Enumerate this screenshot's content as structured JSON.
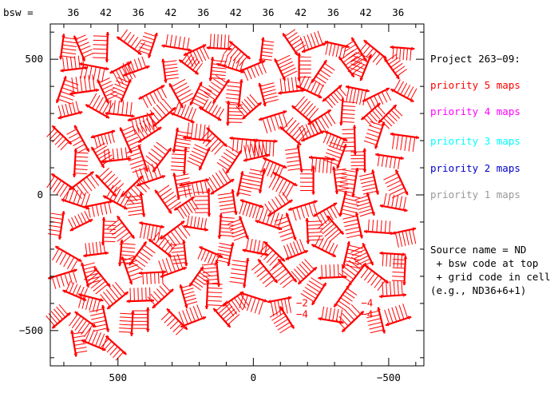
{
  "chart_data": {
    "type": "scatter",
    "xlim": [
      750,
      -630
    ],
    "ylim": [
      -630,
      630
    ],
    "x_ticks": [
      "500",
      "0",
      "−500"
    ],
    "x_tick_values": [
      500,
      0,
      -500
    ],
    "y_ticks": [
      "500",
      "0",
      "−500"
    ],
    "y_tick_values": [
      500,
      0,
      -500
    ],
    "bsw_label": "bsw =",
    "bsw_codes": [
      "36",
      "42",
      "36",
      "42",
      "36",
      "42",
      "36",
      "42",
      "36",
      "42",
      "36"
    ],
    "bsw_centers": [
      665,
      545,
      425,
      305,
      185,
      65,
      -55,
      -175,
      -295,
      -415,
      -535
    ],
    "grid": {
      "x_start": 712,
      "x_step": 84,
      "x_count": 16,
      "y_start": 548,
      "y_step": -84,
      "y_count": 14
    },
    "map_color": "#ff0000",
    "cell_annotations": [
      {
        "x": -180,
        "y": -410,
        "lines": [
          "−2",
          "−4"
        ]
      },
      {
        "x": -420,
        "y": -410,
        "lines": [
          "−4",
          "−4"
        ]
      }
    ]
  },
  "legend": {
    "title": "Project 263−09:",
    "items": [
      {
        "label": "priority 5 maps",
        "color": "#ff0000"
      },
      {
        "label": "priority 4 maps",
        "color": "#ff00ff"
      },
      {
        "label": "priority 3 maps",
        "color": "#00ffff"
      },
      {
        "label": "priority 2 maps",
        "color": "#0000cc"
      },
      {
        "label": "priority 1 maps",
        "color": "#999999"
      }
    ]
  },
  "note": {
    "lines": [
      "Source name = ND",
      " + bsw code at top",
      " + grid code in cell",
      "(e.g., ND36+6+1)"
    ]
  }
}
